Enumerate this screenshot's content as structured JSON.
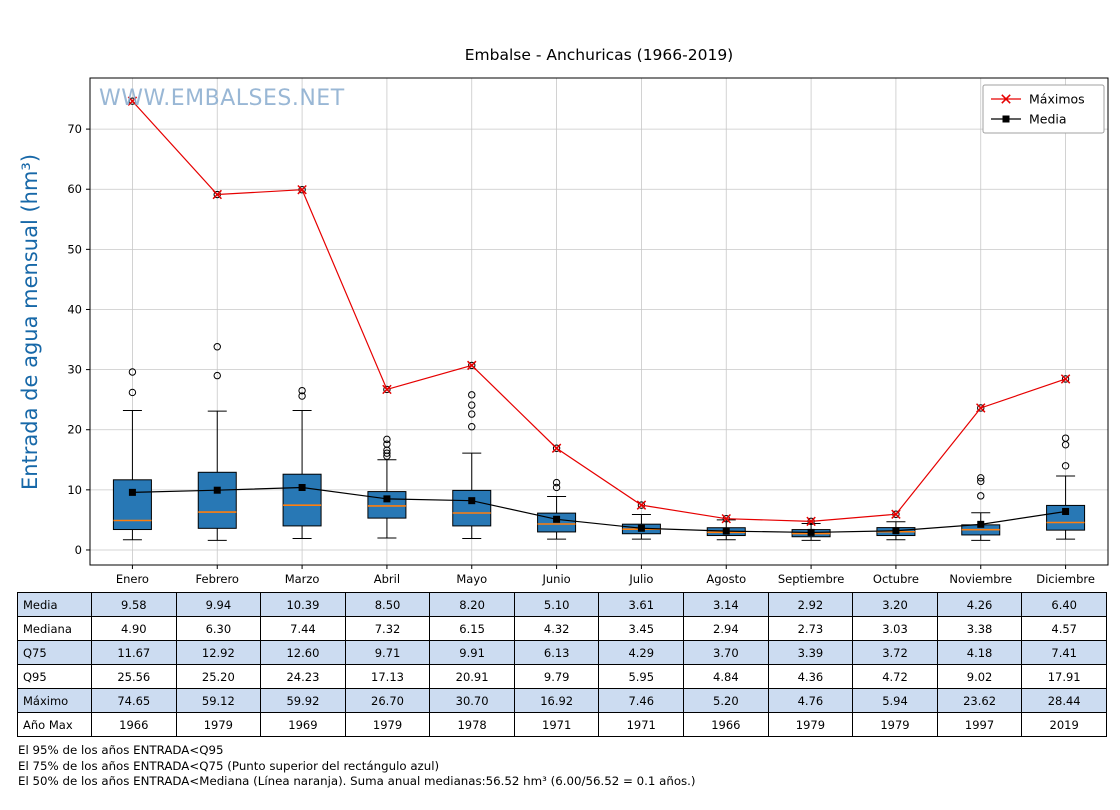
{
  "title": "Embalse - Anchuricas (1966-2019)",
  "watermark": "WWW.EMBALSES.NET",
  "colors": {
    "watermark": "#8fb0d1",
    "ylabel": "#1768a8",
    "box_fill": "#2878b5",
    "median": "#ff7f0e",
    "maximos": "#e60000",
    "media": "#000000",
    "table_highlight": "#ccdcf1",
    "grid": "#c8c8c8"
  },
  "chart_data": {
    "type": "boxplot",
    "title": "Embalse - Anchuricas (1966-2019)",
    "ylabel": "Entrada de agua mensual (hm³)",
    "xlabel": "",
    "ylim": [
      -2.5,
      78.5
    ],
    "yticks": [
      0,
      10,
      20,
      30,
      40,
      50,
      60,
      70
    ],
    "grid": true,
    "legend_position": "upper right",
    "categories": [
      "Enero",
      "Febrero",
      "Marzo",
      "Abril",
      "Mayo",
      "Junio",
      "Julio",
      "Agosto",
      "Septiembre",
      "Octubre",
      "Noviembre",
      "Diciembre"
    ],
    "boxes": [
      {
        "q1": 3.4,
        "median": 4.9,
        "q3": 11.67,
        "whisker_low": 1.7,
        "whisker_high": 23.2,
        "outliers": [
          26.2,
          29.6,
          74.65
        ]
      },
      {
        "q1": 3.6,
        "median": 6.3,
        "q3": 12.92,
        "whisker_low": 1.6,
        "whisker_high": 23.1,
        "outliers": [
          29.0,
          33.8,
          59.12
        ]
      },
      {
        "q1": 4.0,
        "median": 7.44,
        "q3": 12.6,
        "whisker_low": 1.9,
        "whisker_high": 23.2,
        "outliers": [
          25.6,
          26.5,
          59.92
        ]
      },
      {
        "q1": 5.3,
        "median": 7.32,
        "q3": 9.71,
        "whisker_low": 2.0,
        "whisker_high": 15.0,
        "outliers": [
          15.6,
          16.1,
          16.6,
          17.6,
          18.4,
          26.7
        ]
      },
      {
        "q1": 4.0,
        "median": 6.15,
        "q3": 9.91,
        "whisker_low": 1.9,
        "whisker_high": 16.1,
        "outliers": [
          20.5,
          22.6,
          24.1,
          25.8,
          30.7
        ]
      },
      {
        "q1": 3.0,
        "median": 4.32,
        "q3": 6.13,
        "whisker_low": 1.8,
        "whisker_high": 8.9,
        "outliers": [
          10.4,
          11.2,
          16.92
        ]
      },
      {
        "q1": 2.7,
        "median": 3.45,
        "q3": 4.29,
        "whisker_low": 1.8,
        "whisker_high": 5.9,
        "outliers": [
          7.46
        ]
      },
      {
        "q1": 2.4,
        "median": 2.94,
        "q3": 3.7,
        "whisker_low": 1.7,
        "whisker_high": 5.0,
        "outliers": [
          5.2
        ]
      },
      {
        "q1": 2.2,
        "median": 2.73,
        "q3": 3.39,
        "whisker_low": 1.6,
        "whisker_high": 4.4,
        "outliers": [
          4.76
        ]
      },
      {
        "q1": 2.4,
        "median": 3.03,
        "q3": 3.72,
        "whisker_low": 1.7,
        "whisker_high": 4.7,
        "outliers": [
          5.94
        ]
      },
      {
        "q1": 2.5,
        "median": 3.38,
        "q3": 4.18,
        "whisker_low": 1.6,
        "whisker_high": 6.2,
        "outliers": [
          9.0,
          11.4,
          12.0,
          23.62
        ]
      },
      {
        "q1": 3.3,
        "median": 4.57,
        "q3": 7.41,
        "whisker_low": 1.8,
        "whisker_high": 12.3,
        "outliers": [
          14.0,
          17.5,
          18.6,
          28.44
        ]
      }
    ],
    "series": [
      {
        "name": "Máximos",
        "marker": "x",
        "color": "#e60000",
        "values": [
          74.65,
          59.12,
          59.92,
          26.7,
          30.7,
          16.92,
          7.46,
          5.2,
          4.76,
          5.94,
          23.62,
          28.44
        ]
      },
      {
        "name": "Media",
        "marker": "square",
        "color": "#000000",
        "values": [
          9.58,
          9.94,
          10.39,
          8.5,
          8.2,
          5.1,
          3.61,
          3.14,
          2.92,
          3.2,
          4.26,
          6.4
        ]
      }
    ]
  },
  "table": {
    "row_labels": [
      "Media",
      "Mediana",
      "Q75",
      "Q95",
      "Máximo",
      "Año Max"
    ],
    "columns": [
      "Enero",
      "Febrero",
      "Marzo",
      "Abril",
      "Mayo",
      "Junio",
      "Julio",
      "Agosto",
      "Septiembre",
      "Octubre",
      "Noviembre",
      "Diciembre"
    ],
    "rows": [
      [
        "9.58",
        "9.94",
        "10.39",
        "8.50",
        "8.20",
        "5.10",
        "3.61",
        "3.14",
        "2.92",
        "3.20",
        "4.26",
        "6.40"
      ],
      [
        "4.90",
        "6.30",
        "7.44",
        "7.32",
        "6.15",
        "4.32",
        "3.45",
        "2.94",
        "2.73",
        "3.03",
        "3.38",
        "4.57"
      ],
      [
        "11.67",
        "12.92",
        "12.60",
        "9.71",
        "9.91",
        "6.13",
        "4.29",
        "3.70",
        "3.39",
        "3.72",
        "4.18",
        "7.41"
      ],
      [
        "25.56",
        "25.20",
        "24.23",
        "17.13",
        "20.91",
        "9.79",
        "5.95",
        "4.84",
        "4.36",
        "4.72",
        "9.02",
        "17.91"
      ],
      [
        "74.65",
        "59.12",
        "59.92",
        "26.70",
        "30.70",
        "16.92",
        "7.46",
        "5.20",
        "4.76",
        "5.94",
        "23.62",
        "28.44"
      ],
      [
        "1966",
        "1979",
        "1969",
        "1979",
        "1978",
        "1971",
        "1971",
        "1966",
        "1979",
        "1979",
        "1997",
        "2019"
      ]
    ]
  },
  "notes": [
    "El 95% de los años ENTRADA<Q95",
    "El 75% de los años ENTRADA<Q75 (Punto superior del rectángulo azul)",
    "El 50% de los años ENTRADA<Mediana (Línea naranja). Suma anual medianas:56.52 hm³ (6.00/56.52 = 0.1 años.)"
  ]
}
